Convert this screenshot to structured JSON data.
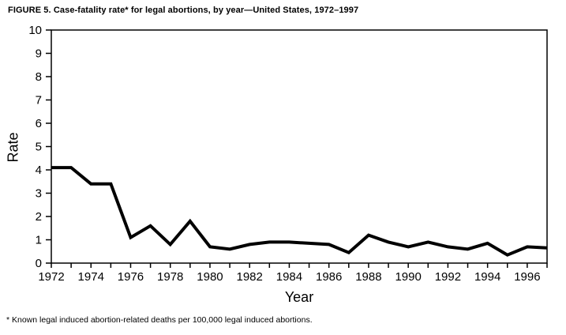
{
  "figure": {
    "title": "FIGURE 5. Case-fatality rate* for legal abortions, by year—United States, 1972–1997",
    "footnote": "* Known legal induced abortion-related deaths per 100,000 legal induced abortions."
  },
  "chart_data": {
    "type": "line",
    "title": "FIGURE 5. Case-fatality rate* for legal abortions, by year—United States, 1972–1997",
    "xlabel": "Year",
    "ylabel": "Rate",
    "x": [
      1972,
      1973,
      1974,
      1975,
      1976,
      1977,
      1978,
      1979,
      1980,
      1981,
      1982,
      1983,
      1984,
      1985,
      1986,
      1987,
      1988,
      1989,
      1990,
      1991,
      1992,
      1993,
      1994,
      1995,
      1996,
      1997
    ],
    "values": [
      4.1,
      4.1,
      3.4,
      3.4,
      1.1,
      1.6,
      0.8,
      1.8,
      0.7,
      0.6,
      0.8,
      0.9,
      0.9,
      0.85,
      0.8,
      0.45,
      1.2,
      0.9,
      0.7,
      0.9,
      0.7,
      0.6,
      0.85,
      0.35,
      0.7,
      0.65
    ],
    "xlim": [
      1972,
      1997
    ],
    "ylim": [
      0,
      10
    ],
    "y_ticks": [
      0,
      1,
      2,
      3,
      4,
      5,
      6,
      7,
      8,
      9,
      10
    ],
    "x_tick_labels": [
      1972,
      1974,
      1976,
      1978,
      1980,
      1982,
      1984,
      1986,
      1988,
      1990,
      1992,
      1994,
      1996
    ],
    "x_minor_tick_interval": 1,
    "grid": false,
    "legend": false,
    "line_color": "#000000",
    "line_width": 4,
    "axis_color": "#000000"
  }
}
